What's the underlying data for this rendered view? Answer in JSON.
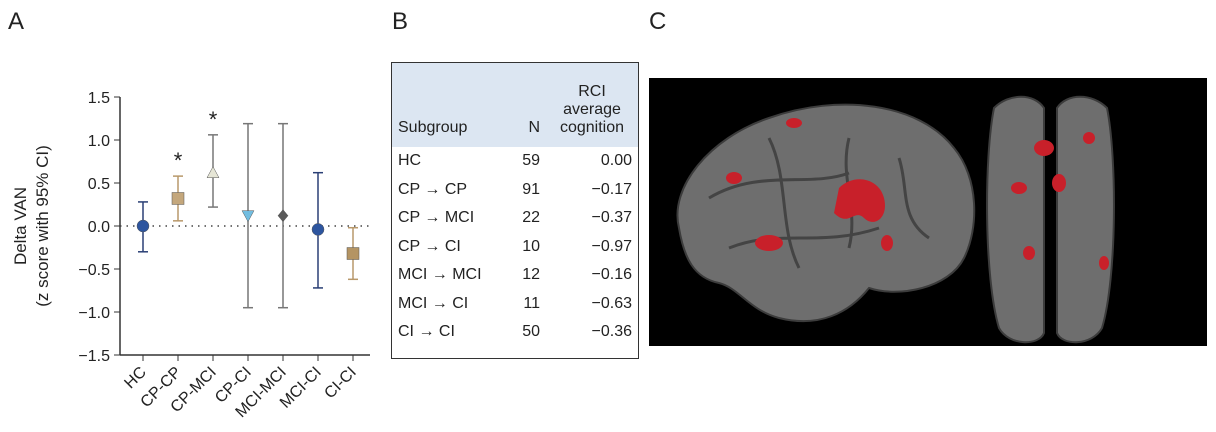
{
  "panel_labels": [
    "A",
    "B",
    "C"
  ],
  "chart_data": {
    "type": "errorbar",
    "y_label": "Delta VAN",
    "y_label_2": "(z score with 95% CI)",
    "categories": [
      "HC",
      "CP-CP",
      "CP-MCI",
      "CP-CI",
      "MCI-MCI",
      "MCI-CI",
      "CI-CI"
    ],
    "values": [
      0.0,
      0.32,
      0.62,
      0.12,
      0.12,
      -0.04,
      -0.32
    ],
    "lower": [
      -0.3,
      0.06,
      0.22,
      -0.95,
      -0.95,
      -0.72,
      -0.62
    ],
    "upper": [
      0.28,
      0.58,
      1.06,
      1.19,
      1.19,
      0.62,
      -0.02
    ],
    "markers": [
      "circle",
      "square",
      "triangle-up",
      "triangle-down",
      "diamond",
      "circle",
      "square"
    ],
    "colors": [
      "#2d559f",
      "#c4a77c",
      "#e6e6d6",
      "#72bde0",
      "#5a5a5a",
      "#2d559f",
      "#b49463"
    ],
    "bar_colors": [
      "#2a3f75",
      "#b8986a",
      "#777777",
      "#777777",
      "#777777",
      "#2a3f75",
      "#b8986a"
    ],
    "significance": [
      null,
      "*",
      "*",
      null,
      null,
      null,
      null
    ],
    "reference_line": 0,
    "ylim": [
      -1.5,
      1.5
    ],
    "yticks": [
      {
        "value": -1.5,
        "label": "−1.5"
      },
      {
        "value": -1,
        "label": "−1.0"
      },
      {
        "value": -0.5,
        "label": "−0.5"
      },
      {
        "value": 0,
        "label": "0.0"
      },
      {
        "value": 0.5,
        "label": "0.5"
      },
      {
        "value": 1,
        "label": "1.0"
      },
      {
        "value": 1.5,
        "label": "1.5"
      }
    ]
  },
  "table": {
    "header": [
      "Subgroup",
      "N",
      "RCI average cognition"
    ],
    "rows": [
      [
        "HC",
        59,
        "0.00"
      ],
      [
        "CP → CP",
        91,
        "−0.17"
      ],
      [
        "CP → MCI",
        22,
        "−0.37"
      ],
      [
        "CP → CI",
        10,
        "−0.97"
      ],
      [
        "MCI → MCI",
        12,
        "−0.16"
      ],
      [
        "MCI → CI",
        11,
        "−0.63"
      ],
      [
        "CI → CI",
        50,
        "−0.36"
      ]
    ]
  }
}
